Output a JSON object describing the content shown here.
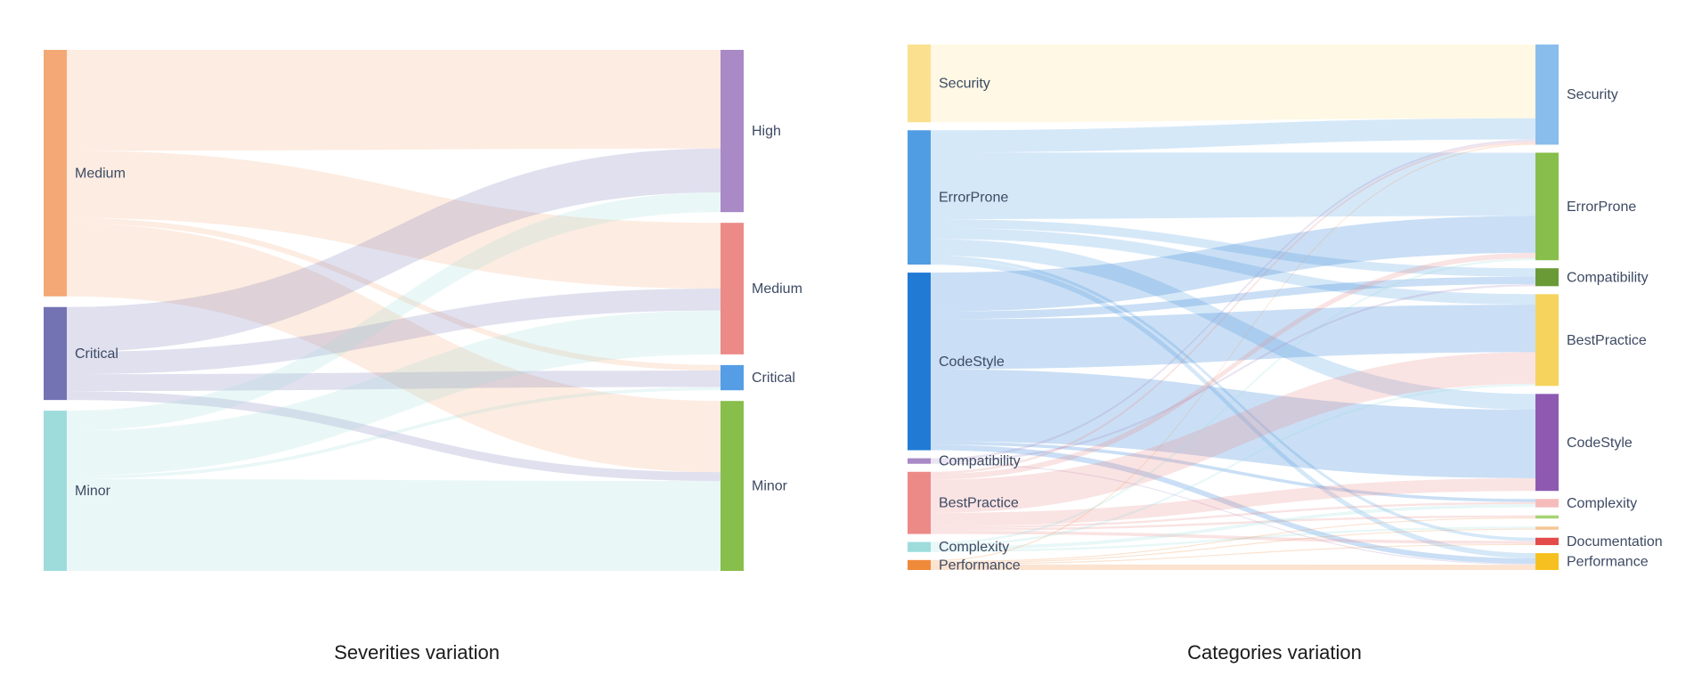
{
  "captions": {
    "severities": "Severities variation",
    "categories": "Categories variation"
  },
  "chart_data": [
    {
      "type": "sankey",
      "title": "Severities variation",
      "source_nodes": [
        {
          "id": "s_medium",
          "label": "Medium",
          "color": "#f4a875"
        },
        {
          "id": "s_critical",
          "label": "Critical",
          "color": "#7373b4"
        },
        {
          "id": "s_minor",
          "label": "Minor",
          "color": "#9edcdc"
        }
      ],
      "target_nodes": [
        {
          "id": "t_high",
          "label": "High",
          "color": "#a989c6"
        },
        {
          "id": "t_medium",
          "label": "Medium",
          "color": "#ec8a88"
        },
        {
          "id": "t_critical",
          "label": "Critical",
          "color": "#559ee5"
        },
        {
          "id": "t_minor",
          "label": "Minor",
          "color": "#88be4c"
        }
      ],
      "links": [
        {
          "source": "s_medium",
          "target": "t_high",
          "value": 90
        },
        {
          "source": "s_medium",
          "target": "t_medium",
          "value": 60
        },
        {
          "source": "s_medium",
          "target": "t_critical",
          "value": 5
        },
        {
          "source": "s_medium",
          "target": "t_minor",
          "value": 65
        },
        {
          "source": "s_critical",
          "target": "t_high",
          "value": 40
        },
        {
          "source": "s_critical",
          "target": "t_medium",
          "value": 20
        },
        {
          "source": "s_critical",
          "target": "t_critical",
          "value": 15
        },
        {
          "source": "s_critical",
          "target": "t_minor",
          "value": 8
        },
        {
          "source": "s_minor",
          "target": "t_high",
          "value": 18
        },
        {
          "source": "s_minor",
          "target": "t_medium",
          "value": 40
        },
        {
          "source": "s_minor",
          "target": "t_critical",
          "value": 3
        },
        {
          "source": "s_minor",
          "target": "t_minor",
          "value": 82
        }
      ]
    },
    {
      "type": "sankey",
      "title": "Categories variation",
      "source_nodes": [
        {
          "id": "c_security",
          "label": "Security",
          "color": "#fbe08f"
        },
        {
          "id": "c_errorprone",
          "label": "ErrorProne",
          "color": "#519de3"
        },
        {
          "id": "c_codestyle",
          "label": "CodeStyle",
          "color": "#217bd5"
        },
        {
          "id": "c_compat",
          "label": "Compatibility",
          "color": "#a989c6"
        },
        {
          "id": "c_bestpractice",
          "label": "BestPractice",
          "color": "#ec8a88"
        },
        {
          "id": "c_complexity",
          "label": "Complexity",
          "color": "#9edcdc"
        },
        {
          "id": "c_performance",
          "label": "Performance",
          "color": "#ef8a3b"
        }
      ],
      "target_nodes": [
        {
          "id": "d_security",
          "label": "Security",
          "color": "#89bdeb"
        },
        {
          "id": "d_errorprone",
          "label": "ErrorProne",
          "color": "#88be4c"
        },
        {
          "id": "d_compat",
          "label": "Compatibility",
          "color": "#6a9a36"
        },
        {
          "id": "d_bestpractice",
          "label": "BestPractice",
          "color": "#f6d35d"
        },
        {
          "id": "d_codestyle",
          "label": "CodeStyle",
          "color": "#8e5ab1"
        },
        {
          "id": "d_complexity",
          "label": "Complexity",
          "color": "#f6bcbc"
        },
        {
          "id": "d_extra",
          "label": "",
          "color": "#a6d373"
        },
        {
          "id": "d_extra2",
          "label": "",
          "color": "#f4c796"
        },
        {
          "id": "d_documentation",
          "label": "Documentation",
          "color": "#e34b4b"
        },
        {
          "id": "d_performance",
          "label": "Performance",
          "color": "#f6c120"
        }
      ],
      "links": [
        {
          "source": "c_security",
          "target": "d_security",
          "value": 70
        },
        {
          "source": "c_errorprone",
          "target": "d_security",
          "value": 20
        },
        {
          "source": "c_errorprone",
          "target": "d_errorprone",
          "value": 60
        },
        {
          "source": "c_errorprone",
          "target": "d_compat",
          "value": 8
        },
        {
          "source": "c_errorprone",
          "target": "d_bestpractice",
          "value": 10
        },
        {
          "source": "c_errorprone",
          "target": "d_codestyle",
          "value": 15
        },
        {
          "source": "c_errorprone",
          "target": "d_documentation",
          "value": 3
        },
        {
          "source": "c_errorprone",
          "target": "d_performance",
          "value": 5
        },
        {
          "source": "c_codestyle",
          "target": "d_errorprone",
          "value": 35
        },
        {
          "source": "c_codestyle",
          "target": "d_compat",
          "value": 7
        },
        {
          "source": "c_codestyle",
          "target": "d_bestpractice",
          "value": 45
        },
        {
          "source": "c_codestyle",
          "target": "d_codestyle",
          "value": 65
        },
        {
          "source": "c_codestyle",
          "target": "d_complexity",
          "value": 3
        },
        {
          "source": "c_codestyle",
          "target": "d_performance",
          "value": 5
        },
        {
          "source": "c_compat",
          "target": "d_security",
          "value": 2
        },
        {
          "source": "c_compat",
          "target": "d_compat",
          "value": 2
        },
        {
          "source": "c_compat",
          "target": "d_performance",
          "value": 1
        },
        {
          "source": "c_bestpractice",
          "target": "d_security",
          "value": 2
        },
        {
          "source": "c_bestpractice",
          "target": "d_errorprone",
          "value": 5
        },
        {
          "source": "c_bestpractice",
          "target": "d_bestpractice",
          "value": 30
        },
        {
          "source": "c_bestpractice",
          "target": "d_codestyle",
          "value": 12
        },
        {
          "source": "c_bestpractice",
          "target": "d_complexity",
          "value": 2
        },
        {
          "source": "c_bestpractice",
          "target": "d_extra",
          "value": 2
        },
        {
          "source": "c_bestpractice",
          "target": "d_documentation",
          "value": 3
        },
        {
          "source": "c_complexity",
          "target": "d_errorprone",
          "value": 2
        },
        {
          "source": "c_complexity",
          "target": "d_bestpractice",
          "value": 2
        },
        {
          "source": "c_complexity",
          "target": "d_complexity",
          "value": 3
        },
        {
          "source": "c_complexity",
          "target": "d_extra2",
          "value": 2
        },
        {
          "source": "c_performance",
          "target": "d_security",
          "value": 1
        },
        {
          "source": "c_performance",
          "target": "d_extra",
          "value": 1
        },
        {
          "source": "c_performance",
          "target": "d_extra2",
          "value": 1
        },
        {
          "source": "c_performance",
          "target": "d_documentation",
          "value": 1
        },
        {
          "source": "c_performance",
          "target": "d_performance",
          "value": 5
        }
      ]
    }
  ]
}
